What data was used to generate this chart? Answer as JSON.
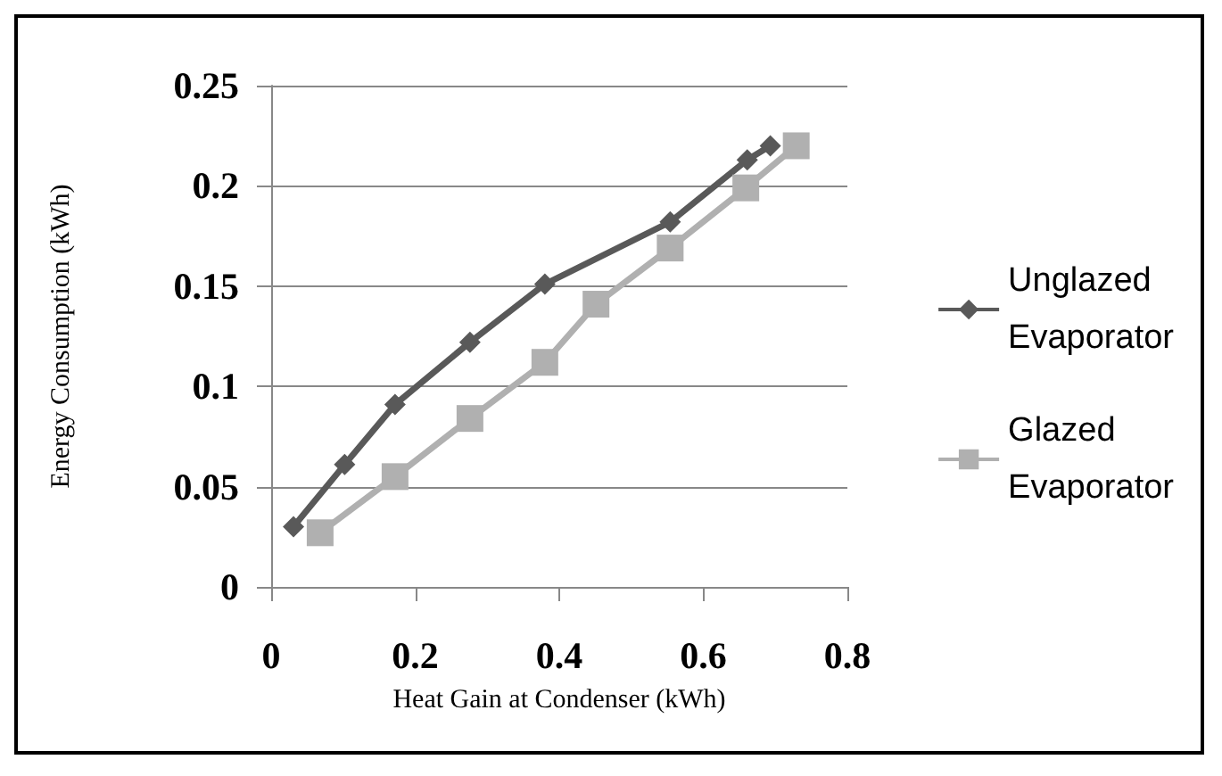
{
  "chart_data": {
    "type": "line",
    "xlabel": "Heat Gain at Condenser (kWh)",
    "ylabel": "Energy Consumption (kWh)",
    "xlim": [
      0,
      0.8
    ],
    "xticks": [
      0,
      0.2,
      0.4,
      0.6,
      0.8
    ],
    "ylim": [
      0,
      0.25
    ],
    "yticks": [
      0,
      0.05,
      0.1,
      0.15,
      0.2,
      0.25
    ],
    "grid": "y",
    "legend": "right",
    "series": [
      {
        "name": "Unglazed Evaporator",
        "color": "#595959",
        "marker": "diamond",
        "x": [
          0.031,
          0.102,
          0.172,
          0.276,
          0.38,
          0.554,
          0.661,
          0.693
        ],
        "values": [
          0.03,
          0.061,
          0.091,
          0.122,
          0.151,
          0.182,
          0.213,
          0.22
        ]
      },
      {
        "name": "Glazed Evaporator",
        "color": "#b0b0b0",
        "marker": "square",
        "x": [
          0.068,
          0.172,
          0.276,
          0.38,
          0.451,
          0.554,
          0.659,
          0.729
        ],
        "values": [
          0.027,
          0.055,
          0.084,
          0.112,
          0.141,
          0.169,
          0.199,
          0.22
        ]
      }
    ]
  }
}
